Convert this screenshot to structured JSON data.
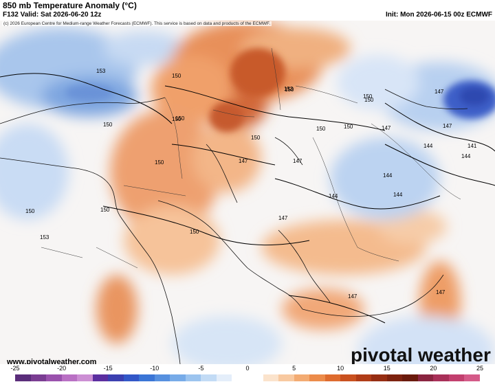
{
  "header": {
    "title": "850 mb Temperature Anomaly (°C)",
    "valid": "F132 Valid: Sat 2026-06-20 12z",
    "init": "Init: Mon 2026-06-15 00z ECMWF"
  },
  "map": {
    "copyright": "(c) 2026 European Centre for Medium-range Weather Forecasts (ECMWF). This service is based on data and products of the ECMWF.",
    "contour_labels": [
      "153",
      "150",
      "150",
      "150",
      "150",
      "150",
      "153",
      "150",
      "150",
      "150",
      "150",
      "150",
      "147",
      "147",
      "147",
      "144",
      "144",
      "144",
      "144",
      "144",
      "147",
      "147",
      "141",
      "150",
      "150",
      "150",
      "153",
      "150",
      "147",
      "147",
      "147"
    ]
  },
  "footer": {
    "site": "www.pivotalweather.com",
    "brand": "pivotal weather"
  },
  "colorbar": {
    "ticks": [
      "-25",
      "-20",
      "-15",
      "-10",
      "-5",
      "0",
      "5",
      "10",
      "15",
      "20",
      "25"
    ],
    "colors": [
      "#5a2d7a",
      "#7a3d92",
      "#9a52ad",
      "#b970c4",
      "#cc8fd4",
      "#5b2ea0",
      "#3b3fb0",
      "#3257c8",
      "#3a75d6",
      "#5690df",
      "#77abe8",
      "#9cc4ef",
      "#c2dbf5",
      "#e4eefa",
      "#ffffff",
      "#ffffff",
      "#fbe3cc",
      "#f8c9a0",
      "#f3ab72",
      "#ec8b4a",
      "#de6b2e",
      "#c9511f",
      "#b03c17",
      "#962d12",
      "#7d220f",
      "#6a1a0c",
      "#8a2440",
      "#a83058",
      "#c23f6e",
      "#d45a88"
    ]
  }
}
